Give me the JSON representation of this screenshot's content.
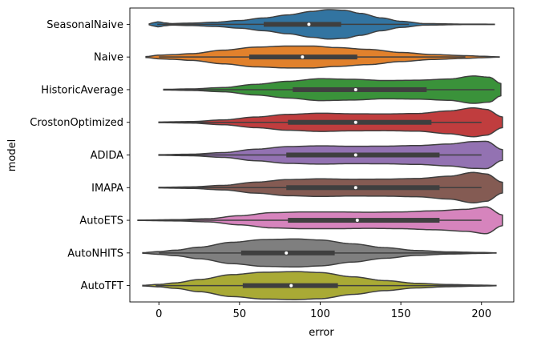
{
  "chart_data": {
    "type": "violin",
    "orientation": "horizontal",
    "xlabel": "error",
    "ylabel": "model",
    "xlim": [
      -18,
      220
    ],
    "xticks": [
      0,
      50,
      100,
      150,
      200
    ],
    "grid": false,
    "legend": "none",
    "series": [
      {
        "name": "SeasonalNaive",
        "color": "#3274a1",
        "min": -6,
        "max": 208,
        "q1": 65,
        "median": 93,
        "q3": 113,
        "whisker_low": -1,
        "whisker_high": 155,
        "density": [
          [
            -6,
            0.03
          ],
          [
            -3,
            0.12
          ],
          [
            0,
            0.17
          ],
          [
            3,
            0.1
          ],
          [
            8,
            0.05
          ],
          [
            20,
            0.08
          ],
          [
            35,
            0.14
          ],
          [
            50,
            0.25
          ],
          [
            65,
            0.42
          ],
          [
            80,
            0.62
          ],
          [
            95,
            0.85
          ],
          [
            105,
            0.97
          ],
          [
            115,
            0.92
          ],
          [
            125,
            0.72
          ],
          [
            138,
            0.42
          ],
          [
            150,
            0.2
          ],
          [
            165,
            0.05
          ],
          [
            190,
            0.015
          ],
          [
            208,
            0.01
          ]
        ]
      },
      {
        "name": "Naive",
        "color": "#e1812c",
        "min": -8,
        "max": 211,
        "q1": 56,
        "median": 89,
        "q3": 123,
        "whisker_low": 0,
        "whisker_high": 190,
        "density": [
          [
            -8,
            0.03
          ],
          [
            0,
            0.12
          ],
          [
            8,
            0.15
          ],
          [
            20,
            0.22
          ],
          [
            40,
            0.45
          ],
          [
            60,
            0.65
          ],
          [
            80,
            0.72
          ],
          [
            95,
            0.72
          ],
          [
            110,
            0.62
          ],
          [
            130,
            0.5
          ],
          [
            150,
            0.3
          ],
          [
            170,
            0.16
          ],
          [
            190,
            0.09
          ],
          [
            200,
            0.05
          ],
          [
            211,
            0.01
          ]
        ]
      },
      {
        "name": "HistoricAverage",
        "color": "#3a923a",
        "min": 3,
        "max": 212,
        "q1": 83,
        "median": 122,
        "q3": 166,
        "whisker_low": 3,
        "whisker_high": 208,
        "density": [
          [
            3,
            0.02
          ],
          [
            20,
            0.05
          ],
          [
            40,
            0.14
          ],
          [
            60,
            0.35
          ],
          [
            80,
            0.55
          ],
          [
            100,
            0.72
          ],
          [
            120,
            0.68
          ],
          [
            140,
            0.6
          ],
          [
            160,
            0.62
          ],
          [
            180,
            0.7
          ],
          [
            195,
            0.9
          ],
          [
            205,
            0.82
          ],
          [
            212,
            0.4
          ]
        ]
      },
      {
        "name": "CrostonOptimized",
        "color": "#c03d3e",
        "min": 0,
        "max": 213,
        "q1": 80,
        "median": 122,
        "q3": 169,
        "whisker_low": 0,
        "whisker_high": 200,
        "density": [
          [
            0,
            0.02
          ],
          [
            20,
            0.05
          ],
          [
            40,
            0.16
          ],
          [
            60,
            0.35
          ],
          [
            80,
            0.52
          ],
          [
            100,
            0.6
          ],
          [
            120,
            0.56
          ],
          [
            140,
            0.55
          ],
          [
            160,
            0.58
          ],
          [
            180,
            0.75
          ],
          [
            195,
            0.95
          ],
          [
            203,
            0.85
          ],
          [
            213,
            0.35
          ]
        ]
      },
      {
        "name": "ADIDA",
        "color": "#9372b2",
        "min": 0,
        "max": 213,
        "q1": 79,
        "median": 122,
        "q3": 174,
        "whisker_low": 0,
        "whisker_high": 200,
        "density": [
          [
            0,
            0.02
          ],
          [
            20,
            0.05
          ],
          [
            40,
            0.16
          ],
          [
            60,
            0.38
          ],
          [
            80,
            0.55
          ],
          [
            100,
            0.6
          ],
          [
            120,
            0.57
          ],
          [
            140,
            0.58
          ],
          [
            160,
            0.62
          ],
          [
            180,
            0.72
          ],
          [
            195,
            0.88
          ],
          [
            203,
            0.9
          ],
          [
            213,
            0.35
          ]
        ]
      },
      {
        "name": "IMAPA",
        "color": "#845b53",
        "min": 0,
        "max": 213,
        "q1": 79,
        "median": 122,
        "q3": 174,
        "whisker_low": 0,
        "whisker_high": 200,
        "density": [
          [
            0,
            0.02
          ],
          [
            20,
            0.05
          ],
          [
            40,
            0.15
          ],
          [
            60,
            0.36
          ],
          [
            80,
            0.53
          ],
          [
            100,
            0.58
          ],
          [
            120,
            0.55
          ],
          [
            140,
            0.56
          ],
          [
            160,
            0.6
          ],
          [
            180,
            0.75
          ],
          [
            195,
            1.0
          ],
          [
            203,
            0.9
          ],
          [
            213,
            0.35
          ]
        ]
      },
      {
        "name": "AutoETS",
        "color": "#d684bd",
        "min": -13,
        "max": 213,
        "q1": 80,
        "median": 123,
        "q3": 174,
        "whisker_low": -13,
        "whisker_high": 200,
        "density": [
          [
            -13,
            0.01
          ],
          [
            10,
            0.04
          ],
          [
            30,
            0.1
          ],
          [
            50,
            0.3
          ],
          [
            70,
            0.5
          ],
          [
            90,
            0.55
          ],
          [
            110,
            0.55
          ],
          [
            130,
            0.53
          ],
          [
            150,
            0.55
          ],
          [
            170,
            0.62
          ],
          [
            190,
            0.72
          ],
          [
            203,
            0.88
          ],
          [
            213,
            0.35
          ]
        ]
      },
      {
        "name": "AutoNHITS",
        "color": "#7f7f7f",
        "min": -10,
        "max": 209,
        "q1": 51,
        "median": 79,
        "q3": 109,
        "whisker_low": 0,
        "whisker_high": 200,
        "density": [
          [
            -10,
            0.02
          ],
          [
            0,
            0.09
          ],
          [
            10,
            0.18
          ],
          [
            25,
            0.38
          ],
          [
            45,
            0.7
          ],
          [
            65,
            0.88
          ],
          [
            85,
            0.92
          ],
          [
            100,
            0.85
          ],
          [
            120,
            0.6
          ],
          [
            140,
            0.35
          ],
          [
            160,
            0.16
          ],
          [
            180,
            0.07
          ],
          [
            200,
            0.03
          ],
          [
            209,
            0.01
          ]
        ]
      },
      {
        "name": "AutoTFT",
        "color": "#a9aa35",
        "min": -10,
        "max": 209,
        "q1": 52,
        "median": 82,
        "q3": 111,
        "whisker_low": -2,
        "whisker_high": 200,
        "density": [
          [
            -10,
            0.02
          ],
          [
            0,
            0.08
          ],
          [
            10,
            0.18
          ],
          [
            25,
            0.4
          ],
          [
            45,
            0.72
          ],
          [
            65,
            0.88
          ],
          [
            85,
            0.92
          ],
          [
            100,
            0.86
          ],
          [
            120,
            0.58
          ],
          [
            140,
            0.33
          ],
          [
            160,
            0.15
          ],
          [
            180,
            0.07
          ],
          [
            200,
            0.03
          ],
          [
            209,
            0.01
          ]
        ]
      }
    ]
  }
}
